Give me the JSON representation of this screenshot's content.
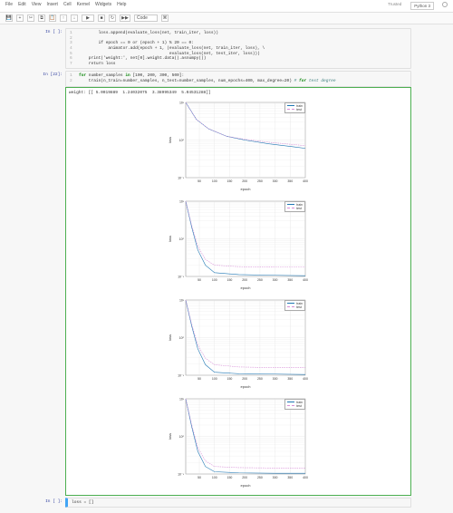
{
  "menu": {
    "items": [
      "File",
      "Edit",
      "View",
      "Insert",
      "Cell",
      "Kernel",
      "Widgets",
      "Help"
    ]
  },
  "toolbar": {
    "save_icon": "💾",
    "add_icon": "+",
    "cut_icon": "✂",
    "copy_icon": "⧉",
    "paste_icon": "📋",
    "up_icon": "↑",
    "down_icon": "↓",
    "run_label": "▶",
    "stop_icon": "■",
    "restart_icon": "↻",
    "ff_icon": "▶▶",
    "celltype": "Code",
    "cmd_icon": "⌘",
    "trusted": "Trusted",
    "kernel": "Python 3"
  },
  "code_cell": {
    "prompt": "In [ ]:",
    "lines": [
      {
        "n": "",
        "t": "        loss.append(evaluate_loss(net, train_iter, loss))"
      },
      {
        "n": "",
        "t": ""
      },
      {
        "n": "",
        "t": "        if epoch == 0 or (epoch + 1) % 20 == 0:"
      },
      {
        "n": "",
        "t": "            animator.add(epoch + 1, (evaluate_loss(net, train_iter, loss), \\"
      },
      {
        "n": "",
        "t": "                                     evaluate_loss(net, test_iter, loss)))"
      },
      {
        "n": "",
        "t": "    print('weight:', net[0].weight.data().asnumpy())"
      },
      {
        "n": "",
        "t": "    return loss"
      }
    ]
  },
  "run_cell": {
    "prompt": "In [22]:",
    "code_lines": [
      "for number_samples in [100, 200, 300, 500]:",
      "    train(n_train=number_samples, n_test=number_samples, num_epochs=400, max_degree=20) # for test degree"
    ],
    "out_prompt": "",
    "out_text": "weight: [[ 5.0019889  1.24032075  3.38995349  5.04531288]]"
  },
  "next_cell": {
    "prompt": "In [ ]:",
    "code": "loss = []"
  },
  "chart_common": {
    "x_ticks": [
      50,
      100,
      150,
      200,
      250,
      300,
      350,
      400
    ],
    "y_tick_labels": [
      "10⁻¹",
      "10⁰",
      "10¹"
    ],
    "xlabel": "epoch",
    "ylabel": "loss",
    "legend": [
      "train",
      "test"
    ],
    "train_color": "#1f77b4",
    "test_color": "#d68dd6",
    "bg": "#ffffff",
    "grid_color": "#dddddd",
    "axis_color": "#333333"
  },
  "charts": [
    {
      "train": [
        [
          5,
          1.0
        ],
        [
          40,
          0.55
        ],
        [
          80,
          0.3
        ],
        [
          140,
          0.1
        ],
        [
          200,
          0.0
        ],
        [
          280,
          -0.1
        ],
        [
          360,
          -0.18
        ],
        [
          400,
          -0.22
        ]
      ],
      "test": [
        [
          5,
          1.0
        ],
        [
          40,
          0.55
        ],
        [
          80,
          0.3
        ],
        [
          140,
          0.1
        ],
        [
          200,
          0.02
        ],
        [
          280,
          -0.06
        ],
        [
          360,
          -0.12
        ],
        [
          400,
          -0.15
        ]
      ]
    },
    {
      "train": [
        [
          5,
          1.0
        ],
        [
          25,
          0.3
        ],
        [
          45,
          -0.3
        ],
        [
          70,
          -0.7
        ],
        [
          100,
          -0.9
        ],
        [
          180,
          -0.95
        ],
        [
          300,
          -0.97
        ],
        [
          400,
          -0.98
        ]
      ],
      "test": [
        [
          5,
          1.0
        ],
        [
          25,
          0.35
        ],
        [
          45,
          -0.2
        ],
        [
          70,
          -0.55
        ],
        [
          100,
          -0.7
        ],
        [
          180,
          -0.74
        ],
        [
          300,
          -0.75
        ],
        [
          400,
          -0.75
        ]
      ]
    },
    {
      "train": [
        [
          5,
          1.0
        ],
        [
          25,
          0.3
        ],
        [
          45,
          -0.3
        ],
        [
          70,
          -0.72
        ],
        [
          100,
          -0.92
        ],
        [
          180,
          -0.96
        ],
        [
          300,
          -0.97
        ],
        [
          400,
          -0.98
        ]
      ],
      "test": [
        [
          5,
          1.0
        ],
        [
          25,
          0.35
        ],
        [
          45,
          -0.2
        ],
        [
          70,
          -0.55
        ],
        [
          100,
          -0.72
        ],
        [
          180,
          -0.78
        ],
        [
          300,
          -0.8
        ],
        [
          400,
          -0.8
        ]
      ]
    },
    {
      "train": [
        [
          5,
          1.0
        ],
        [
          25,
          0.25
        ],
        [
          45,
          -0.4
        ],
        [
          70,
          -0.8
        ],
        [
          100,
          -0.94
        ],
        [
          180,
          -0.97
        ],
        [
          300,
          -0.98
        ],
        [
          400,
          -0.98
        ]
      ],
      "test": [
        [
          5,
          1.0
        ],
        [
          25,
          0.3
        ],
        [
          45,
          -0.3
        ],
        [
          70,
          -0.65
        ],
        [
          100,
          -0.8
        ],
        [
          180,
          -0.83
        ],
        [
          300,
          -0.84
        ],
        [
          400,
          -0.84
        ]
      ]
    }
  ]
}
